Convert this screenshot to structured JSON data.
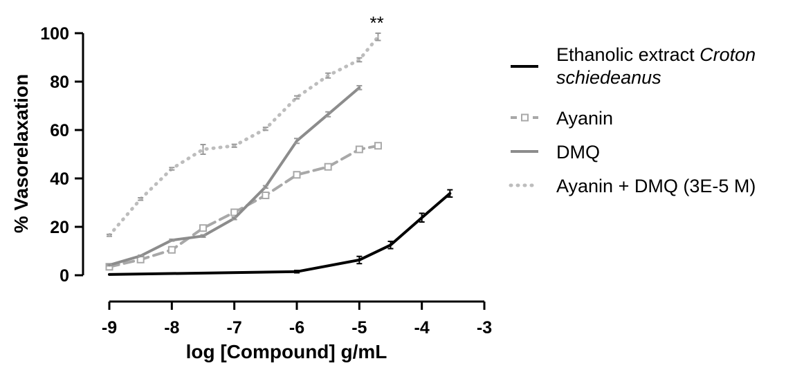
{
  "chart_data": {
    "type": "line",
    "xlabel": "log [Compound] g/mL",
    "ylabel": "% Vasorelaxation",
    "xlim": [
      -9,
      -3
    ],
    "ylim": [
      0,
      100
    ],
    "x_ticks": [
      -9,
      -8,
      -7,
      -6,
      -5,
      -4,
      -3
    ],
    "x_tick_labels": [
      "-9",
      "-8",
      "-7",
      "-6",
      "-5",
      "-4",
      "-3"
    ],
    "y_ticks": [
      0,
      20,
      40,
      60,
      80,
      100
    ],
    "y_tick_labels": [
      "0",
      "20",
      "40",
      "60",
      "80",
      "100"
    ],
    "grid": false,
    "legend_position": "right",
    "annotation": {
      "text": "**",
      "x": -4.72,
      "y": 104
    },
    "series": [
      {
        "name": "Ethanolic extract Croton schiedeanus",
        "legend_parts": [
          {
            "text": "Ethanolic extract ",
            "italic": false
          },
          {
            "text": "Croton",
            "italic": true
          }
        ],
        "legend_parts_line2": [
          {
            "text": "schiedeanus",
            "italic": true
          }
        ],
        "color": "#000000",
        "dash": "solid",
        "marker": "none",
        "x": [
          -9,
          -6,
          -5,
          -4.5,
          -4,
          -3.55
        ],
        "y": [
          0.3,
          1.5,
          6.3,
          12.5,
          23.8,
          33.8
        ],
        "err": [
          0,
          0.5,
          1.5,
          1.5,
          1.8,
          1.5
        ]
      },
      {
        "name": "Ayanin",
        "legend_parts": [
          {
            "text": "Ayanin",
            "italic": false
          }
        ],
        "color": "#a8a8a8",
        "dash": "dashed",
        "marker": "square-open",
        "x": [
          -9,
          -8.5,
          -8,
          -7.5,
          -7,
          -6.5,
          -6,
          -5.5,
          -5,
          -4.7
        ],
        "y": [
          3.5,
          6.5,
          10.5,
          19.5,
          26,
          33,
          41.5,
          44.8,
          52,
          53.5
        ],
        "err": [
          0.4,
          0.5,
          0.5,
          0.6,
          0.6,
          0.6,
          0.6,
          0.6,
          0.8,
          0.8
        ]
      },
      {
        "name": "DMQ",
        "legend_parts": [
          {
            "text": "DMQ",
            "italic": false
          }
        ],
        "color": "#8c8c8c",
        "dash": "solid",
        "marker": "none",
        "x": [
          -9,
          -8.5,
          -8,
          -7.5,
          -7,
          -6.5,
          -6,
          -5.5,
          -5
        ],
        "y": [
          4.2,
          8,
          14.5,
          16.2,
          23.5,
          36.5,
          55.5,
          66.5,
          77.5
        ],
        "err": [
          0.3,
          0.3,
          0.4,
          0.5,
          0.5,
          0.5,
          1,
          1,
          0.8
        ]
      },
      {
        "name": "Ayanin + DMQ (3E-5 M)",
        "legend_parts": [
          {
            "text": "Ayanin + DMQ (3E-5 M)",
            "italic": false
          }
        ],
        "color": "#bdbdbd",
        "dash": "dotted",
        "marker": "none",
        "x": [
          -9,
          -8.5,
          -8,
          -7.5,
          -7,
          -6.5,
          -6,
          -5.5,
          -5,
          -4.7
        ],
        "y": [
          16.5,
          31.5,
          44,
          52,
          53.5,
          60.5,
          73.5,
          82.5,
          89,
          98.5
        ],
        "err": [
          0.4,
          0.5,
          0.5,
          2,
          0.6,
          0.6,
          0.6,
          1,
          0.8,
          1.5
        ]
      }
    ]
  }
}
